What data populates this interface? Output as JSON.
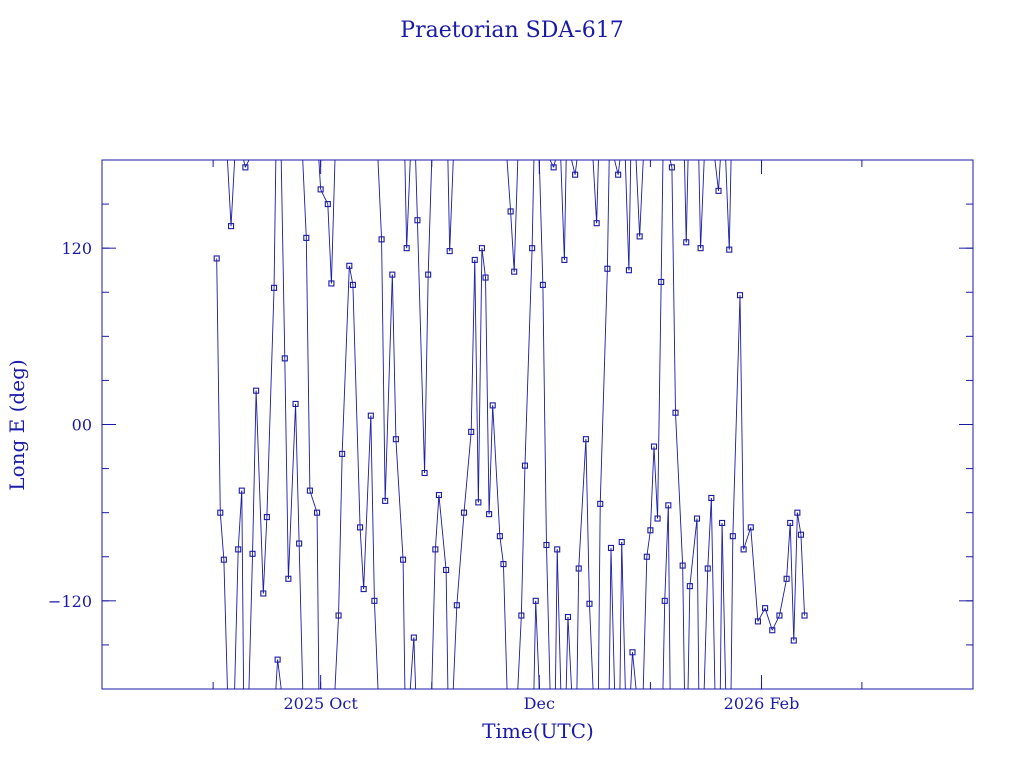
{
  "chart_data": {
    "type": "line",
    "title": "Praetorian SDA-617",
    "xlabel": "Time(UTC)",
    "ylabel": "Long E (deg)",
    "x_ticks": [
      {
        "label": "2025 Oct",
        "date": "2025-10-01"
      },
      {
        "label": "Dec",
        "date": "2025-12-01"
      },
      {
        "label": "2026 Feb",
        "date": "2026-02-01"
      }
    ],
    "y_ticks": [
      {
        "value": 120,
        "label": "120"
      },
      {
        "value": 0,
        "label": "00"
      },
      {
        "value": -120,
        "label": "−120"
      }
    ],
    "xlim": [
      "2025-08-01",
      "2026-04-01"
    ],
    "ylim": [
      -180,
      180
    ],
    "grid": false,
    "marker": "open-square",
    "colors": {
      "line": "#1a1aa8",
      "background": "#ffffff"
    },
    "series": [
      {
        "x": [
          "2025-09-02",
          "2025-09-03",
          "2025-09-04",
          "2025-09-06",
          "2025-09-08",
          "2025-09-09",
          "2025-09-10",
          "2025-09-12",
          "2025-09-13",
          "2025-09-15",
          "2025-09-16",
          "2025-09-18",
          "2025-09-19",
          "2025-09-21",
          "2025-09-22",
          "2025-09-24",
          "2025-09-25",
          "2025-09-27",
          "2025-09-28",
          "2025-09-30",
          "2025-10-01",
          "2025-10-03",
          "2025-10-04",
          "2025-10-06",
          "2025-10-07",
          "2025-10-09",
          "2025-10-10",
          "2025-10-12",
          "2025-10-13",
          "2025-10-15",
          "2025-10-16",
          "2025-10-18",
          "2025-10-19",
          "2025-10-21",
          "2025-10-22",
          "2025-10-24",
          "2025-10-25",
          "2025-10-27",
          "2025-10-28",
          "2025-10-30",
          "2025-10-31",
          "2025-11-02",
          "2025-11-03",
          "2025-11-05",
          "2025-11-06",
          "2025-11-08",
          "2025-11-10",
          "2025-11-12",
          "2025-11-13",
          "2025-11-14",
          "2025-11-15",
          "2025-11-16",
          "2025-11-17",
          "2025-11-18",
          "2025-11-20",
          "2025-11-21",
          "2025-11-23",
          "2025-11-24",
          "2025-11-26",
          "2025-11-27",
          "2025-11-29",
          "2025-11-30",
          "2025-12-02",
          "2025-12-03",
          "2025-12-05",
          "2025-12-06",
          "2025-12-08",
          "2025-12-09",
          "2025-12-11",
          "2025-12-12",
          "2025-12-14",
          "2025-12-15",
          "2025-12-17",
          "2025-12-18",
          "2025-12-20",
          "2025-12-21",
          "2025-12-23",
          "2025-12-24",
          "2025-12-26",
          "2025-12-27",
          "2025-12-29",
          "2025-12-31",
          "2026-01-01",
          "2026-01-02",
          "2026-01-03",
          "2026-01-04",
          "2026-01-05",
          "2026-01-06",
          "2026-01-07",
          "2026-01-08",
          "2026-01-10",
          "2026-01-11",
          "2026-01-12",
          "2026-01-14",
          "2026-01-15",
          "2026-01-17",
          "2026-01-18",
          "2026-01-20",
          "2026-01-21",
          "2026-01-23",
          "2026-01-24",
          "2026-01-26",
          "2026-01-27",
          "2026-01-29",
          "2026-01-31",
          "2026-02-02",
          "2026-02-04",
          "2026-02-06",
          "2026-02-08",
          "2026-02-09",
          "2026-02-10",
          "2026-02-11",
          "2026-02-12",
          "2026-02-13"
        ],
        "y": [
          113,
          -60,
          -92,
          135,
          -85,
          -45,
          175,
          -88,
          23,
          -115,
          -63,
          93,
          -160,
          45,
          -105,
          14,
          -81,
          127,
          -45,
          -60,
          160,
          150,
          96,
          -130,
          -20,
          108,
          95,
          -70,
          -112,
          6,
          -120,
          126,
          -52,
          102,
          -10,
          -92,
          120,
          -145,
          139,
          -33,
          102,
          -85,
          -48,
          -99,
          118,
          -123,
          -60,
          -5,
          112,
          -53,
          120,
          100,
          -61,
          13,
          -76,
          -95,
          145,
          104,
          -130,
          -28,
          120,
          -120,
          95,
          -82,
          175,
          -85,
          112,
          -131,
          170,
          -98,
          -10,
          -122,
          137,
          -54,
          106,
          -84,
          170,
          -80,
          105,
          -155,
          128,
          -90,
          -72,
          -15,
          -64,
          97,
          -120,
          -55,
          175,
          8,
          -96,
          124,
          -110,
          -64,
          120,
          -98,
          -50,
          159,
          -67,
          119,
          -76,
          88,
          -85,
          -70,
          -134,
          -125,
          -140,
          -130,
          -105,
          -67,
          -147,
          -60,
          -75,
          -130
        ]
      }
    ]
  }
}
